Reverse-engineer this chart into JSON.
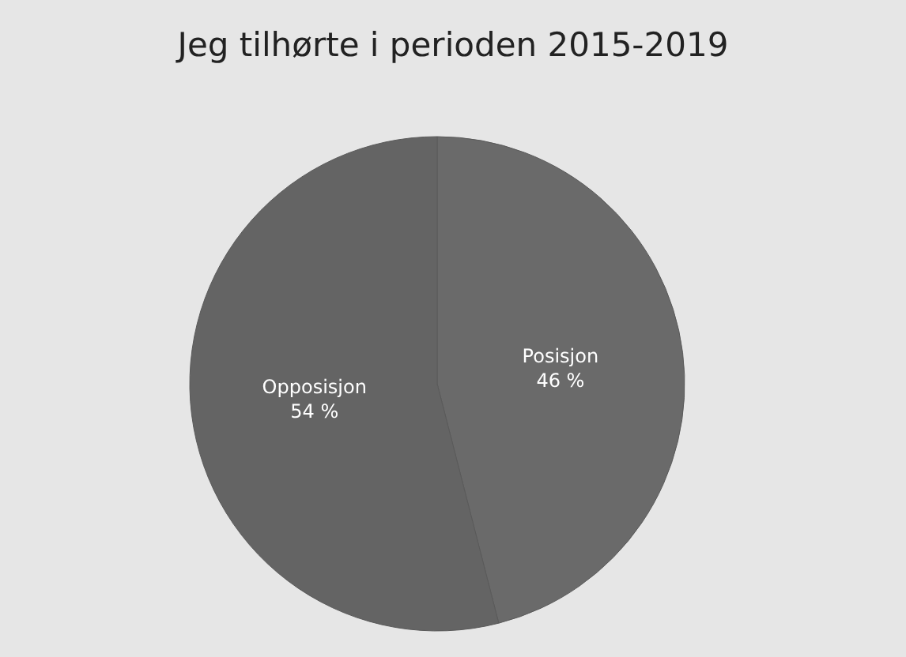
{
  "chart_data": {
    "type": "pie",
    "title": "Jeg tilhørte i perioden 2015-2019",
    "categories": [
      "Posisjon",
      "Opposisjon"
    ],
    "values": [
      46,
      54
    ],
    "value_labels": [
      "46 %",
      "54 %"
    ],
    "colors": [
      "#6a6a6a",
      "#646464"
    ],
    "legend": false
  }
}
